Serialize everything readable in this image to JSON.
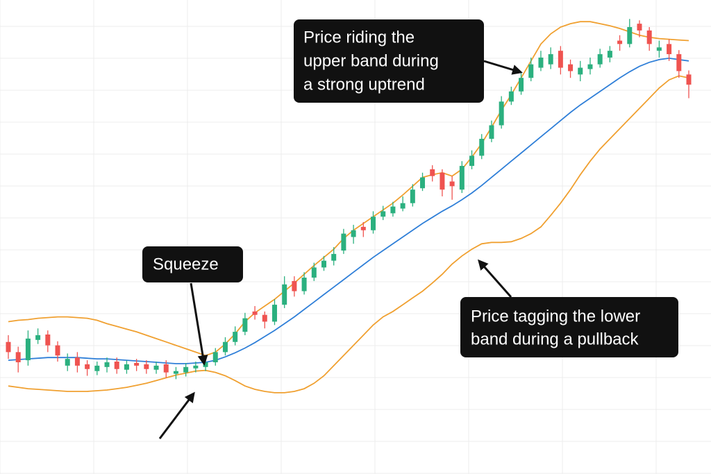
{
  "chart_data": {
    "type": "candlestick",
    "ylim": [
      0,
      700
    ],
    "grid": true,
    "up_color": "#2bb07f",
    "down_color": "#ef5350",
    "open": [
      195,
      180,
      168,
      198,
      206,
      190,
      160,
      172,
      162,
      152,
      158,
      166,
      154,
      164,
      162,
      154,
      162,
      148,
      150,
      156,
      158,
      165,
      180,
      195,
      210,
      240,
      235,
      225,
      250,
      285,
      270,
      290,
      305,
      315,
      330,
      350,
      365,
      360,
      380,
      385,
      392,
      400,
      422,
      450,
      445,
      432,
      420,
      455,
      470,
      495,
      515,
      550,
      565,
      585,
      600,
      605,
      625,
      605,
      590,
      598,
      605,
      615,
      640,
      635,
      665,
      655,
      625,
      635,
      620,
      590
    ],
    "high": [
      205,
      188,
      212,
      215,
      212,
      196,
      178,
      180,
      168,
      166,
      172,
      172,
      168,
      170,
      168,
      166,
      168,
      158,
      164,
      166,
      172,
      186,
      202,
      218,
      238,
      248,
      240,
      258,
      292,
      292,
      298,
      312,
      322,
      335,
      362,
      368,
      372,
      388,
      396,
      402,
      410,
      428,
      445,
      456,
      450,
      440,
      462,
      478,
      502,
      522,
      558,
      572,
      592,
      615,
      625,
      630,
      632,
      612,
      610,
      615,
      628,
      632,
      648,
      672,
      670,
      660,
      640,
      642,
      626,
      596
    ],
    "low": [
      170,
      150,
      160,
      192,
      180,
      166,
      152,
      150,
      145,
      146,
      150,
      148,
      148,
      152,
      148,
      148,
      142,
      140,
      144,
      150,
      152,
      160,
      175,
      190,
      205,
      228,
      215,
      220,
      245,
      262,
      265,
      285,
      300,
      308,
      325,
      340,
      350,
      355,
      375,
      380,
      388,
      395,
      418,
      432,
      410,
      405,
      415,
      450,
      465,
      490,
      510,
      545,
      560,
      580,
      595,
      598,
      590,
      585,
      580,
      590,
      600,
      608,
      625,
      630,
      645,
      625,
      615,
      610,
      585,
      555
    ],
    "close": [
      180,
      165,
      200,
      205,
      190,
      175,
      170,
      160,
      155,
      160,
      165,
      155,
      162,
      160,
      155,
      160,
      150,
      152,
      158,
      160,
      165,
      180,
      195,
      210,
      230,
      235,
      225,
      250,
      280,
      270,
      290,
      305,
      315,
      325,
      355,
      360,
      360,
      380,
      388,
      395,
      400,
      420,
      438,
      440,
      420,
      425,
      455,
      470,
      495,
      515,
      550,
      565,
      585,
      605,
      615,
      620,
      600,
      595,
      600,
      605,
      620,
      625,
      635,
      660,
      655,
      635,
      630,
      620,
      595,
      575
    ],
    "series": [
      {
        "color": "#f0a030",
        "values": [
          225,
          227,
          228,
          230,
          231,
          232,
          232,
          231,
          230,
          227,
          222,
          218,
          214,
          210,
          205,
          200,
          195,
          190,
          185,
          180,
          175,
          180,
          192,
          207,
          225,
          238,
          248,
          258,
          270,
          282,
          295,
          308,
          320,
          332,
          348,
          360,
          370,
          380,
          390,
          400,
          412,
          425,
          438,
          442,
          445,
          440,
          450,
          468,
          488,
          512,
          537,
          560,
          585,
          610,
          635,
          650,
          660,
          665,
          668,
          668,
          665,
          662,
          658,
          653,
          648,
          645,
          643,
          642,
          641,
          640
        ]
      },
      {
        "color": "#2f7fd8",
        "values": [
          168,
          169,
          170,
          171,
          172,
          172,
          172,
          172,
          171,
          170,
          170,
          169,
          168,
          167,
          166,
          165,
          164,
          163,
          163,
          164,
          165,
          168,
          173,
          179,
          186,
          194,
          203,
          212,
          222,
          232,
          243,
          254,
          265,
          276,
          287,
          298,
          309,
          320,
          330,
          340,
          350,
          360,
          370,
          379,
          388,
          396,
          405,
          415,
          426,
          438,
          450,
          462,
          474,
          486,
          498,
          510,
          522,
          534,
          545,
          555,
          565,
          575,
          585,
          594,
          602,
          608,
          612,
          614,
          612,
          610
        ]
      },
      {
        "color": "#f0a030",
        "values": [
          130,
          128,
          126,
          125,
          124,
          123,
          122,
          122,
          122,
          123,
          124,
          126,
          128,
          131,
          134,
          138,
          142,
          146,
          149,
          152,
          153,
          150,
          145,
          138,
          130,
          125,
          122,
          120,
          120,
          122,
          126,
          134,
          145,
          160,
          175,
          190,
          205,
          220,
          232,
          240,
          250,
          260,
          270,
          282,
          295,
          310,
          322,
          332,
          340,
          342,
          342,
          343,
          348,
          355,
          365,
          382,
          400,
          420,
          442,
          462,
          480,
          495,
          510,
          525,
          540,
          555,
          570,
          582,
          588,
          585
        ]
      }
    ],
    "annotations": [
      {
        "lines": [
          "Price riding the",
          "upper band during",
          "a strong uptrend"
        ]
      },
      {
        "lines": [
          "Squeeze"
        ]
      },
      {
        "lines": [
          "Price tagging the lower",
          "band during a pullback"
        ]
      }
    ]
  }
}
